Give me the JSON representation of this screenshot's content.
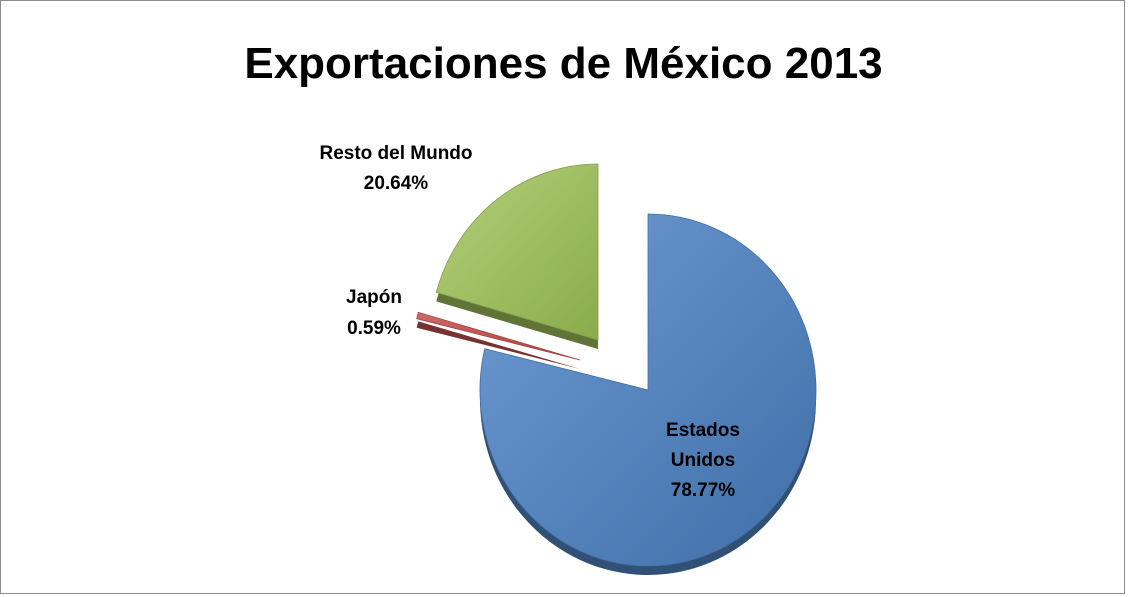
{
  "chart_data": {
    "type": "pie",
    "title": "Exportaciones de México 2013",
    "categories": [
      "Estados Unidos",
      "Japón",
      "Resto del Mundo"
    ],
    "values": [
      78.77,
      0.59,
      20.64
    ],
    "value_labels": [
      "78.77%",
      "0.59%",
      "20.64%"
    ],
    "label_lines": [
      [
        "Estados",
        "Unidos",
        "78.77%"
      ],
      [
        "Japón",
        "0.59%"
      ],
      [
        "Resto del Mundo",
        "20.64%"
      ]
    ],
    "colors": [
      "#4f81bd",
      "#c0504d",
      "#9bbb59"
    ],
    "exploded": true,
    "three_d": true,
    "legend": "none"
  }
}
